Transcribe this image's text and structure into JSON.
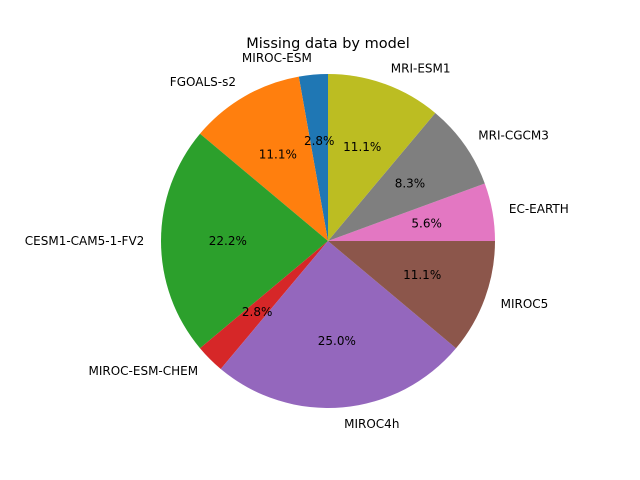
{
  "chart_data": {
    "type": "pie",
    "title": "Missing data by model",
    "start_angle_deg": 0,
    "direction": "counterclockwise",
    "slices": [
      {
        "label": "EC-EARTH",
        "value": 5.6,
        "pct_label": "5.6%",
        "color": "#e377c2"
      },
      {
        "label": "MRI-CGCM3",
        "value": 8.3,
        "pct_label": "8.3%",
        "color": "#7f7f7f"
      },
      {
        "label": "MRI-ESM1",
        "value": 11.1,
        "pct_label": "11.1%",
        "color": "#bcbd22"
      },
      {
        "label": "MIROC-ESM",
        "value": 2.8,
        "pct_label": "2.8%",
        "color": "#1f77b4"
      },
      {
        "label": "FGOALS-s2",
        "value": 11.1,
        "pct_label": "11.1%",
        "color": "#ff7f0e"
      },
      {
        "label": "CESM1-CAM5-1-FV2",
        "value": 22.2,
        "pct_label": "22.2%",
        "color": "#2ca02c"
      },
      {
        "label": "MIROC-ESM-CHEM",
        "value": 2.8,
        "pct_label": "2.8%",
        "color": "#d62728"
      },
      {
        "label": "MIROC4h",
        "value": 25.0,
        "pct_label": "25.0%",
        "color": "#9467bd"
      },
      {
        "label": "MIROC5",
        "value": 11.1,
        "pct_label": "11.1%",
        "color": "#8c564b"
      }
    ]
  }
}
